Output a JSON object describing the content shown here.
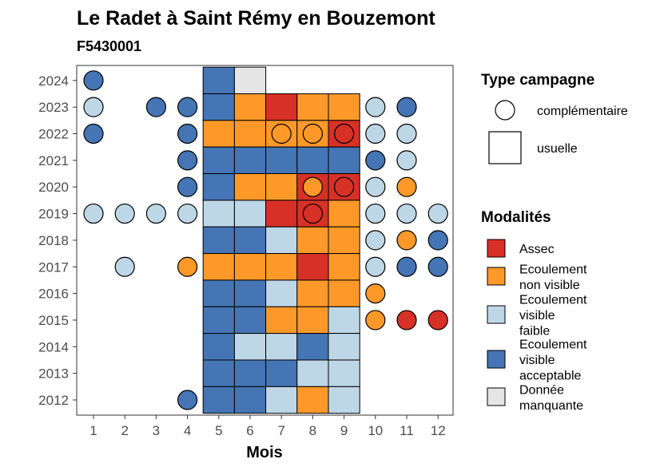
{
  "chart_data": {
    "type": "heatmap",
    "title": "Le Radet à Saint Rémy en Bouzemont",
    "subtitle": "F5430001",
    "xlabel": "Mois",
    "ylabel": "",
    "x_ticks": [
      "1",
      "2",
      "3",
      "4",
      "5",
      "6",
      "7",
      "8",
      "9",
      "10",
      "11",
      "12"
    ],
    "y_ticks": [
      "2012",
      "2013",
      "2014",
      "2015",
      "2016",
      "2017",
      "2018",
      "2019",
      "2020",
      "2021",
      "2022",
      "2023",
      "2024"
    ],
    "legend_campaign": {
      "title": "Type campagne",
      "items": [
        {
          "key": "complementaire",
          "label": "complémentaire",
          "shape": "circle"
        },
        {
          "key": "usuelle",
          "label": "usuelle",
          "shape": "square"
        }
      ]
    },
    "legend_modalites": {
      "title": "Modalités",
      "items": [
        {
          "key": "A",
          "lines": [
            "Assec"
          ],
          "color": "#d73027"
        },
        {
          "key": "N",
          "lines": [
            "Ecoulement",
            "non visible"
          ],
          "color": "#fe9929"
        },
        {
          "key": "F",
          "lines": [
            "Ecoulement",
            "visible",
            "faible"
          ],
          "color": "#bdd7e7"
        },
        {
          "key": "V",
          "lines": [
            "Ecoulement",
            "visible",
            "acceptable"
          ],
          "color": "#4575b4"
        },
        {
          "key": "M",
          "lines": [
            "Donnée",
            "manquante"
          ],
          "color": "#e5e5e5"
        }
      ]
    },
    "usuelle": {
      "months": [
        5,
        6,
        7,
        8,
        9
      ],
      "rows": [
        {
          "year": 2024,
          "values": [
            "V",
            "M"
          ]
        },
        {
          "year": 2023,
          "values": [
            "V",
            "N",
            "A",
            "N",
            "N"
          ]
        },
        {
          "year": 2022,
          "values": [
            "N",
            "N",
            "N",
            "N",
            "A"
          ]
        },
        {
          "year": 2021,
          "values": [
            "V",
            "V",
            "V",
            "V",
            "V"
          ]
        },
        {
          "year": 2020,
          "values": [
            "V",
            "N",
            "N",
            "A",
            "A"
          ]
        },
        {
          "year": 2019,
          "values": [
            "F",
            "F",
            "A",
            "A",
            "N"
          ]
        },
        {
          "year": 2018,
          "values": [
            "V",
            "V",
            "F",
            "N",
            "N"
          ]
        },
        {
          "year": 2017,
          "values": [
            "N",
            "N",
            "N",
            "A",
            "N"
          ]
        },
        {
          "year": 2016,
          "values": [
            "V",
            "V",
            "F",
            "N",
            "N"
          ]
        },
        {
          "year": 2015,
          "values": [
            "V",
            "V",
            "N",
            "N",
            "F"
          ]
        },
        {
          "year": 2014,
          "values": [
            "V",
            "F",
            "F",
            "V",
            "F"
          ]
        },
        {
          "year": 2013,
          "values": [
            "V",
            "V",
            "V",
            "F",
            "F"
          ]
        },
        {
          "year": 2012,
          "values": [
            "V",
            "V",
            "F",
            "N",
            "F"
          ]
        }
      ]
    },
    "complementaire": [
      {
        "year": 2024,
        "month": 1,
        "value": "V"
      },
      {
        "year": 2023,
        "month": 1,
        "value": "F"
      },
      {
        "year": 2023,
        "month": 3,
        "value": "V"
      },
      {
        "year": 2023,
        "month": 4,
        "value": "V"
      },
      {
        "year": 2023,
        "month": 10,
        "value": "F"
      },
      {
        "year": 2023,
        "month": 11,
        "value": "V"
      },
      {
        "year": 2022,
        "month": 1,
        "value": "V"
      },
      {
        "year": 2022,
        "month": 4,
        "value": "V"
      },
      {
        "year": 2022,
        "month": 7,
        "value": "N"
      },
      {
        "year": 2022,
        "month": 8,
        "value": "N"
      },
      {
        "year": 2022,
        "month": 9,
        "value": "A"
      },
      {
        "year": 2022,
        "month": 10,
        "value": "F"
      },
      {
        "year": 2022,
        "month": 11,
        "value": "F"
      },
      {
        "year": 2021,
        "month": 4,
        "value": "V"
      },
      {
        "year": 2021,
        "month": 10,
        "value": "V"
      },
      {
        "year": 2021,
        "month": 11,
        "value": "F"
      },
      {
        "year": 2020,
        "month": 4,
        "value": "V"
      },
      {
        "year": 2020,
        "month": 8,
        "value": "N"
      },
      {
        "year": 2020,
        "month": 9,
        "value": "A"
      },
      {
        "year": 2020,
        "month": 10,
        "value": "F"
      },
      {
        "year": 2020,
        "month": 11,
        "value": "N"
      },
      {
        "year": 2019,
        "month": 1,
        "value": "F"
      },
      {
        "year": 2019,
        "month": 2,
        "value": "F"
      },
      {
        "year": 2019,
        "month": 3,
        "value": "F"
      },
      {
        "year": 2019,
        "month": 4,
        "value": "F"
      },
      {
        "year": 2019,
        "month": 8,
        "value": "A"
      },
      {
        "year": 2019,
        "month": 10,
        "value": "F"
      },
      {
        "year": 2019,
        "month": 11,
        "value": "F"
      },
      {
        "year": 2019,
        "month": 12,
        "value": "F"
      },
      {
        "year": 2018,
        "month": 10,
        "value": "F"
      },
      {
        "year": 2018,
        "month": 11,
        "value": "N"
      },
      {
        "year": 2018,
        "month": 12,
        "value": "V"
      },
      {
        "year": 2017,
        "month": 2,
        "value": "F"
      },
      {
        "year": 2017,
        "month": 4,
        "value": "N"
      },
      {
        "year": 2017,
        "month": 10,
        "value": "F"
      },
      {
        "year": 2017,
        "month": 11,
        "value": "V"
      },
      {
        "year": 2017,
        "month": 12,
        "value": "V"
      },
      {
        "year": 2016,
        "month": 10,
        "value": "N"
      },
      {
        "year": 2015,
        "month": 10,
        "value": "N"
      },
      {
        "year": 2015,
        "month": 11,
        "value": "A"
      },
      {
        "year": 2015,
        "month": 12,
        "value": "A"
      },
      {
        "year": 2012,
        "month": 4,
        "value": "V"
      }
    ]
  }
}
